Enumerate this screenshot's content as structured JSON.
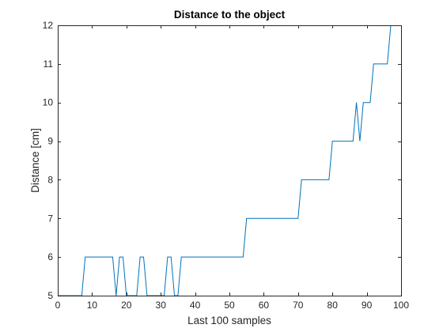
{
  "chart_data": {
    "type": "line",
    "title": "Distance to the object",
    "xlabel": "Last 100 samples",
    "ylabel": "Distance [cm]",
    "xlim": [
      0,
      100
    ],
    "ylim": [
      5,
      12
    ],
    "xticks": [
      0,
      10,
      20,
      30,
      40,
      50,
      60,
      70,
      80,
      90,
      100
    ],
    "yticks": [
      5,
      6,
      7,
      8,
      9,
      10,
      11,
      12
    ],
    "grid": false,
    "legend": "none",
    "colors": {
      "line": "#0072bd",
      "axes": "#262626",
      "background": "#ffffff"
    },
    "series": [
      {
        "x": [
          0,
          1,
          2,
          3,
          4,
          5,
          6,
          7,
          8,
          9,
          10,
          11,
          12,
          13,
          14,
          15,
          16,
          17,
          18,
          19,
          20,
          21,
          22,
          23,
          24,
          25,
          26,
          27,
          28,
          29,
          30,
          31,
          32,
          33,
          34,
          35,
          36,
          37,
          38,
          39,
          40,
          41,
          42,
          43,
          44,
          45,
          46,
          47,
          48,
          49,
          50,
          51,
          52,
          53,
          54,
          55,
          56,
          57,
          58,
          59,
          60,
          61,
          62,
          63,
          64,
          65,
          66,
          67,
          68,
          69,
          70,
          71,
          72,
          73,
          74,
          75,
          76,
          77,
          78,
          79,
          80,
          81,
          82,
          83,
          84,
          85,
          86,
          87,
          88,
          89,
          90,
          91,
          92,
          93,
          94,
          95,
          96,
          97
        ],
        "y": [
          5,
          5,
          5,
          5,
          5,
          5,
          5,
          5,
          6,
          6,
          6,
          6,
          6,
          6,
          6,
          6,
          6,
          5,
          6,
          6,
          5,
          5,
          5,
          5,
          6,
          6,
          5,
          5,
          5,
          5,
          5,
          5,
          6,
          6,
          5,
          5,
          6,
          6,
          6,
          6,
          6,
          6,
          6,
          6,
          6,
          6,
          6,
          6,
          6,
          6,
          6,
          6,
          6,
          6,
          6,
          7,
          7,
          7,
          7,
          7,
          7,
          7,
          7,
          7,
          7,
          7,
          7,
          7,
          7,
          7,
          7,
          8,
          8,
          8,
          8,
          8,
          8,
          8,
          8,
          8,
          9,
          9,
          9,
          9,
          9,
          9,
          9,
          10,
          9,
          10,
          10,
          10,
          11,
          11,
          11,
          11,
          11,
          12
        ]
      }
    ]
  }
}
